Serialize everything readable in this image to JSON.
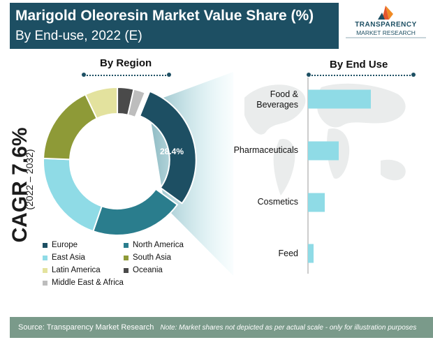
{
  "header": {
    "title": "Marigold Oleoresin Market Value Share (%)",
    "subtitle": "By End-use, 2022 (E)"
  },
  "logo": {
    "word1": "TRANSPARENCY",
    "word2": "MARKET RESEARCH"
  },
  "cagr": {
    "value": "CAGR 7.6%",
    "period": "(2022 – 2032)"
  },
  "sections": {
    "region_heading": "By Region",
    "enduse_heading": "By End Use"
  },
  "chart_data": [
    {
      "type": "pie",
      "title": "By Region",
      "donut": true,
      "highlighted_label": "28.4%",
      "slices": [
        {
          "name": "Europe",
          "value": 28.4,
          "color": "#1d4f63"
        },
        {
          "name": "North America",
          "value": 20.0,
          "color": "#2a7d8d"
        },
        {
          "name": "East Asia",
          "value": 20.0,
          "color": "#8fdbe6"
        },
        {
          "name": "South Asia",
          "value": 17.0,
          "color": "#8e9a37"
        },
        {
          "name": "Latin America",
          "value": 7.0,
          "color": "#e3e29e"
        },
        {
          "name": "Oceania",
          "value": 3.5,
          "color": "#4a4a4a"
        },
        {
          "name": "Middle East & Africa",
          "value": 2.5,
          "color": "#bdbdbd"
        }
      ]
    },
    {
      "type": "bar",
      "orientation": "horizontal",
      "title": "By End Use",
      "categories": [
        "Food & Beverages",
        "Pharmaceuticals",
        "Cosmetics",
        "Feed"
      ],
      "values": [
        45,
        22,
        12,
        4
      ],
      "xlim": [
        0,
        100
      ],
      "color": "#8fdbe6"
    }
  ],
  "legend": {
    "items": [
      {
        "label": "Europe",
        "color": "#1d4f63"
      },
      {
        "label": "North America",
        "color": "#2a7d8d"
      },
      {
        "label": "East Asia",
        "color": "#8fdbe6"
      },
      {
        "label": "South Asia",
        "color": "#8e9a37"
      },
      {
        "label": "Latin America",
        "color": "#e3e29e"
      },
      {
        "label": "Oceania",
        "color": "#4a4a4a"
      },
      {
        "label": "Middle East & Africa",
        "color": "#bdbdbd"
      }
    ]
  },
  "bar_labels": {
    "food_line1": "Food &",
    "food_line2": "Beverages",
    "pharma": "Pharmaceuticals",
    "cosmetics": "Cosmetics",
    "feed": "Feed"
  },
  "footer": {
    "source": "Source: Transparency Market Research",
    "note": "Note: Market shares not depicted as per actual scale - only for illustration purposes"
  },
  "colors": {
    "brand": "#1d4f63",
    "footer": "#7a9a8a",
    "bar": "#8fdbe6"
  }
}
